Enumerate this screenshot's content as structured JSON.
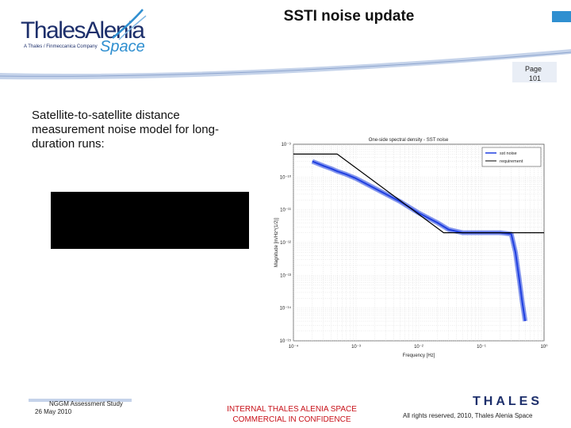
{
  "header": {
    "logo_main": "ThalesAlenia",
    "logo_tagline": "A Thales / Finmeccanica Company",
    "logo_space": "Space",
    "title": "SSTI noise update",
    "page_label": "Page",
    "page_number": "101"
  },
  "body": {
    "text": "Satellite-to-satellite distance measurement noise model for long-duration runs:"
  },
  "chart_data": {
    "type": "line",
    "title": "One-side spectral density - SST noise",
    "xlabel": "Frequency [Hz]",
    "ylabel": "Magnitude [m/Hz^(1/2)]",
    "x_scale": "log",
    "y_scale": "log",
    "xlim": [
      0.0001,
      1
    ],
    "ylim": [
      1e-15,
      1e-09
    ],
    "x_tick_labels": [
      "10⁻⁴",
      "10⁻³",
      "10⁻²",
      "10⁻¹",
      "10⁰"
    ],
    "y_tick_labels": [
      "10⁻⁹",
      "10⁻¹⁰",
      "10⁻¹¹",
      "10⁻¹²",
      "10⁻¹³",
      "10⁻¹⁴",
      "10⁻¹⁵"
    ],
    "grid": true,
    "legend_position": "top-right",
    "series": [
      {
        "name": "sst noise",
        "color": "#1f3fe0",
        "points": [
          [
            0.0002,
            3e-10
          ],
          [
            0.0003,
            2.2e-10
          ],
          [
            0.0004,
            1.8e-10
          ],
          [
            0.0005,
            1.5e-10
          ],
          [
            0.0007,
            1.2e-10
          ],
          [
            0.001,
            9e-11
          ],
          [
            0.002,
            4.5e-11
          ],
          [
            0.005,
            1.8e-11
          ],
          [
            0.01,
            8e-12
          ],
          [
            0.02,
            4e-12
          ],
          [
            0.03,
            2.5e-12
          ],
          [
            0.05,
            2e-12
          ],
          [
            0.1,
            2e-12
          ],
          [
            0.2,
            2e-12
          ],
          [
            0.3,
            1.8e-12
          ],
          [
            0.35,
            5e-13
          ],
          [
            0.4,
            8e-14
          ],
          [
            0.45,
            1.5e-14
          ],
          [
            0.5,
            4e-15
          ]
        ]
      },
      {
        "name": "requirement",
        "color": "#000000",
        "points": [
          [
            0.0001,
            5e-10
          ],
          [
            0.0005,
            5e-10
          ],
          [
            0.025,
            2e-12
          ],
          [
            1,
            2e-12
          ]
        ]
      }
    ]
  },
  "footer": {
    "study": "NGGM Assessment Study",
    "date": "26 May 2010",
    "confidential_line1": "INTERNAL THALES ALENIA SPACE",
    "confidential_line2": "COMMERCIAL IN CONFIDENCE",
    "thales_logo": "THALES",
    "rights": "All rights reserved, 2010, Thales Alenia Space"
  }
}
